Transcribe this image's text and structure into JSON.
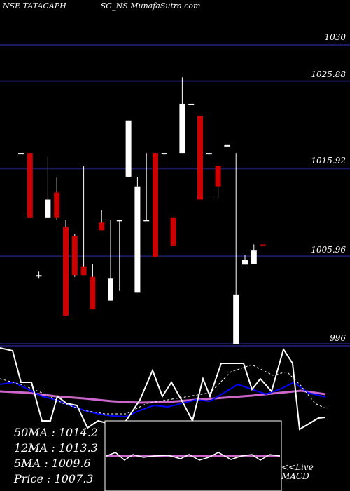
{
  "chart_data": {
    "type": "candlestick",
    "title": "NSE TATACAPH",
    "source": "SG_NS MunafaSutra.com",
    "y_ticks": [
      1030,
      1025.88,
      1015.92,
      1005.96,
      996
    ],
    "y_tick_labels": [
      "1030",
      "1025.88",
      "1015.92",
      "1005.96",
      "996"
    ],
    "ylim": [
      996,
      1030
    ],
    "candles": [
      {
        "open": 1017.7,
        "close": 1017.7,
        "high": 1017.7,
        "low": 1017.7,
        "color": "white"
      },
      {
        "open": 1017.7,
        "close": 1010.3,
        "high": 1017.7,
        "low": 1010.3,
        "color": "red"
      },
      {
        "open": 1003.8,
        "close": 1003.8,
        "high": 1004.2,
        "low": 1003.4,
        "color": "white"
      },
      {
        "open": 1010.3,
        "close": 1012.4,
        "high": 1017.4,
        "low": 1010.3,
        "color": "white"
      },
      {
        "open": 1013.2,
        "close": 1010.3,
        "high": 1015.0,
        "low": 1010.1,
        "color": "red"
      },
      {
        "open": 1009.3,
        "close": 999.2,
        "high": 1010.1,
        "low": 999.2,
        "color": "red"
      },
      {
        "open": 1008.3,
        "close": 1003.8,
        "high": 1008.5,
        "low": 1003.6,
        "color": "red"
      },
      {
        "open": 1004.8,
        "close": 1003.8,
        "high": 1016.2,
        "low": 1003.8,
        "color": "red"
      },
      {
        "open": 1003.6,
        "close": 999.9,
        "high": 1005.1,
        "low": 999.9,
        "color": "red"
      },
      {
        "open": 1009.8,
        "close": 1008.9,
        "high": 1011.2,
        "low": 1008.9,
        "color": "red"
      },
      {
        "open": 1000.9,
        "close": 1003.4,
        "high": 1010.1,
        "low": 1000.9,
        "color": "white"
      },
      {
        "open": 1010.1,
        "close": 1010.1,
        "high": 1010.1,
        "low": 1002.0,
        "color": "white"
      },
      {
        "open": 1015.0,
        "close": 1021.4,
        "high": 1021.4,
        "low": 1015.0,
        "color": "white"
      },
      {
        "open": 1001.8,
        "close": 1013.9,
        "high": 1015.0,
        "low": 1001.8,
        "color": "white"
      },
      {
        "open": 1010.1,
        "close": 1010.1,
        "high": 1017.7,
        "low": 1010.1,
        "color": "white"
      },
      {
        "open": 1017.7,
        "close": 1005.9,
        "high": 1017.7,
        "low": 1005.9,
        "color": "red"
      },
      {
        "open": 1017.7,
        "close": 1017.7,
        "high": 1017.7,
        "low": 1017.7,
        "color": "white"
      },
      {
        "open": 1010.3,
        "close": 1007.1,
        "high": 1010.3,
        "low": 1007.1,
        "color": "red"
      },
      {
        "open": 1017.7,
        "close": 1023.3,
        "high": 1026.3,
        "low": 1017.7,
        "color": "white"
      },
      {
        "open": 1023.3,
        "close": 1023.3,
        "high": 1023.3,
        "low": 1023.3,
        "color": "white"
      },
      {
        "open": 1021.9,
        "close": 1012.4,
        "high": 1021.9,
        "low": 1012.4,
        "color": "red"
      },
      {
        "open": 1017.7,
        "close": 1017.7,
        "high": 1017.7,
        "low": 1017.7,
        "color": "white"
      },
      {
        "open": 1016.2,
        "close": 1013.9,
        "high": 1016.2,
        "low": 1012.6,
        "color": "red"
      },
      {
        "open": 1018.6,
        "close": 1018.6,
        "high": 1018.6,
        "low": 1018.6,
        "color": "white"
      },
      {
        "open": 996.0,
        "close": 1001.6,
        "high": 1017.7,
        "low": 996.0,
        "color": "white"
      },
      {
        "open": 1005.0,
        "close": 1005.5,
        "high": 1006.1,
        "low": 1005.0,
        "color": "white"
      },
      {
        "open": 1005.1,
        "close": 1006.6,
        "high": 1007.3,
        "low": 1005.1,
        "color": "white"
      },
      {
        "open": 1007.3,
        "close": 1007.1,
        "high": 1007.3,
        "low": 1007.1,
        "color": "red"
      }
    ],
    "indicators": {
      "ma50": "50MA : 1014.2",
      "ma12": "12MA : 1013.3",
      "ma5": "5MA : 1009.6",
      "price": "Price   : 1007.3"
    },
    "macd_label_1": "<<Live",
    "macd_label_2": "MACD",
    "colors": {
      "background": "#000000",
      "grid": "#1a1a5e",
      "up": "#ffffff",
      "down": "#cc0000",
      "ma_blue": "#0000ff",
      "ma_pink": "#cc66cc"
    }
  }
}
